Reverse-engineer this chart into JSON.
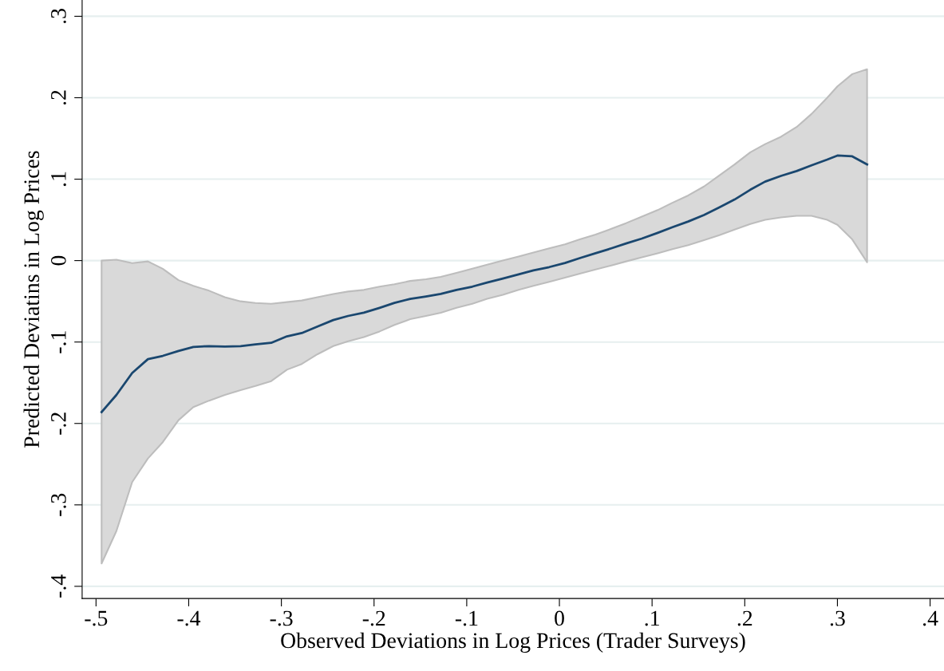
{
  "chart_data": {
    "type": "line",
    "xlabel": "Observed Deviations in Log Prices (Trader Surveys)",
    "ylabel": "Predicted Deviatins in Log Prices",
    "xlim": [
      -0.515,
      0.415
    ],
    "ylim": [
      -0.415,
      0.32
    ],
    "xticks": [
      {
        "value": -0.5,
        "label": "-.5"
      },
      {
        "value": -0.4,
        "label": "-.4"
      },
      {
        "value": -0.3,
        "label": "-.3"
      },
      {
        "value": -0.2,
        "label": "-.2"
      },
      {
        "value": -0.1,
        "label": "-.1"
      },
      {
        "value": 0,
        "label": "0"
      },
      {
        "value": 0.1,
        "label": ".1"
      },
      {
        "value": 0.2,
        "label": ".2"
      },
      {
        "value": 0.3,
        "label": ".3"
      },
      {
        "value": 0.4,
        "label": ".4"
      }
    ],
    "yticks": [
      {
        "value": -0.4,
        "label": "-.4"
      },
      {
        "value": -0.3,
        "label": "-.3"
      },
      {
        "value": -0.2,
        "label": "-.2"
      },
      {
        "value": -0.1,
        "label": "-.1"
      },
      {
        "value": 0,
        "label": "0"
      },
      {
        "value": 0.1,
        "label": ".1"
      },
      {
        "value": 0.2,
        "label": ".2"
      },
      {
        "value": 0.3,
        "label": ".3"
      }
    ],
    "grid": "y",
    "legend": false,
    "line_style": "solid",
    "marker": "none",
    "x": [
      -0.494,
      -0.478,
      -0.461,
      -0.444,
      -0.428,
      -0.411,
      -0.395,
      -0.378,
      -0.361,
      -0.344,
      -0.328,
      -0.311,
      -0.294,
      -0.278,
      -0.261,
      -0.244,
      -0.228,
      -0.211,
      -0.194,
      -0.178,
      -0.161,
      -0.144,
      -0.128,
      -0.111,
      -0.094,
      -0.078,
      -0.061,
      -0.044,
      -0.028,
      -0.011,
      0.006,
      0.022,
      0.039,
      0.056,
      0.072,
      0.089,
      0.106,
      0.122,
      0.139,
      0.156,
      0.172,
      0.189,
      0.206,
      0.222,
      0.239,
      0.256,
      0.272,
      0.289,
      0.3,
      0.316,
      0.332
    ],
    "series": [
      {
        "color": "#1a476f",
        "values": [
          -0.186,
          -0.165,
          -0.138,
          -0.121,
          -0.117,
          -0.111,
          -0.106,
          -0.105,
          -0.1055,
          -0.105,
          -0.103,
          -0.101,
          -0.093,
          -0.089,
          -0.081,
          -0.073,
          -0.068,
          -0.064,
          -0.058,
          -0.052,
          -0.047,
          -0.044,
          -0.041,
          -0.036,
          -0.032,
          -0.027,
          -0.022,
          -0.017,
          -0.012,
          -0.008,
          -0.003,
          0.003,
          0.009,
          0.015,
          0.021,
          0.027,
          0.034,
          0.041,
          0.048,
          0.056,
          0.065,
          0.075,
          0.087,
          0.097,
          0.104,
          0.11,
          0.117,
          0.124,
          0.129,
          0.128,
          0.118
        ],
        "upper": [
          0.0,
          0.001,
          -0.003,
          -0.001,
          -0.01,
          -0.024,
          -0.031,
          -0.037,
          -0.045,
          -0.05,
          -0.052,
          -0.053,
          -0.051,
          -0.049,
          -0.045,
          -0.041,
          -0.038,
          -0.036,
          -0.032,
          -0.029,
          -0.025,
          -0.023,
          -0.02,
          -0.015,
          -0.01,
          -0.005,
          0.0,
          0.005,
          0.01,
          0.015,
          0.02,
          0.026,
          0.032,
          0.039,
          0.046,
          0.054,
          0.062,
          0.071,
          0.08,
          0.091,
          0.104,
          0.118,
          0.133,
          0.143,
          0.152,
          0.164,
          0.18,
          0.2,
          0.214,
          0.229,
          0.235
        ],
        "lower": [
          -0.372,
          -0.332,
          -0.272,
          -0.243,
          -0.223,
          -0.196,
          -0.18,
          -0.172,
          -0.165,
          -0.159,
          -0.154,
          -0.148,
          -0.134,
          -0.127,
          -0.115,
          -0.105,
          -0.099,
          -0.094,
          -0.087,
          -0.079,
          -0.072,
          -0.068,
          -0.064,
          -0.058,
          -0.053,
          -0.047,
          -0.042,
          -0.036,
          -0.031,
          -0.026,
          -0.021,
          -0.016,
          -0.011,
          -0.006,
          -0.001,
          0.004,
          0.009,
          0.014,
          0.019,
          0.025,
          0.031,
          0.038,
          0.045,
          0.05,
          0.053,
          0.055,
          0.055,
          0.05,
          0.044,
          0.026,
          -0.002
        ]
      }
    ]
  }
}
